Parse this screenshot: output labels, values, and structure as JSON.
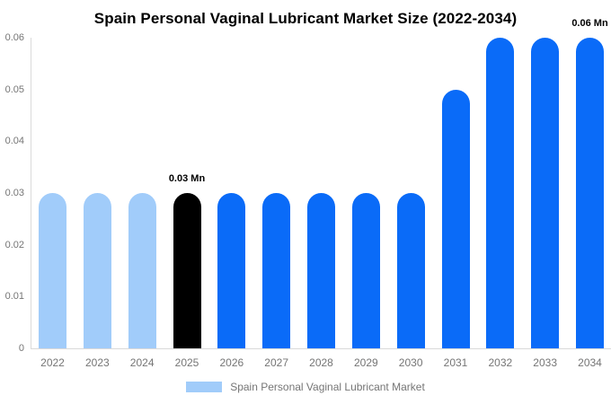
{
  "chart_data": {
    "type": "bar",
    "title": "Spain Personal Vaginal Lubricant Market Size (2022-2034)",
    "categories": [
      "2022",
      "2023",
      "2024",
      "2025",
      "2026",
      "2027",
      "2028",
      "2029",
      "2030",
      "2031",
      "2032",
      "2033",
      "2034"
    ],
    "values": [
      0.03,
      0.03,
      0.03,
      0.03,
      0.03,
      0.03,
      0.03,
      0.03,
      0.03,
      0.05,
      0.06,
      0.06,
      0.06
    ],
    "series": [
      {
        "name": "Spain Personal Vaginal Lubricant Market",
        "values": [
          0.03,
          0.03,
          0.03,
          0.03,
          0.03,
          0.03,
          0.03,
          0.03,
          0.03,
          0.05,
          0.06,
          0.06,
          0.06
        ]
      }
    ],
    "unit": "Mn",
    "bar_colors": [
      "light",
      "light",
      "light",
      "highlight",
      "primary",
      "primary",
      "primary",
      "primary",
      "primary",
      "primary",
      "primary",
      "primary",
      "primary"
    ],
    "annotations": [
      {
        "text": "0.03 Mn",
        "category": "2025",
        "placement": "above-bar"
      },
      {
        "text": "0.06 Mn",
        "category": "2034",
        "placement": "above-bar"
      }
    ],
    "xlabel": "",
    "ylabel": "",
    "ylim": [
      0,
      0.06
    ],
    "yticks": [
      "0",
      "0.01",
      "0.02",
      "0.03",
      "0.04",
      "0.05",
      "0.06"
    ],
    "grid": false,
    "legend": {
      "label": "Spain Personal Vaginal Lubricant Market",
      "position": "bottom"
    }
  },
  "colors": {
    "primary": "#0A6BF8",
    "light": "#A1CCFA",
    "highlight": "#000000",
    "axis_line": "#DADADA",
    "tick_text": "#757575",
    "title_text": "#000000",
    "background": "#FFFFFF"
  }
}
